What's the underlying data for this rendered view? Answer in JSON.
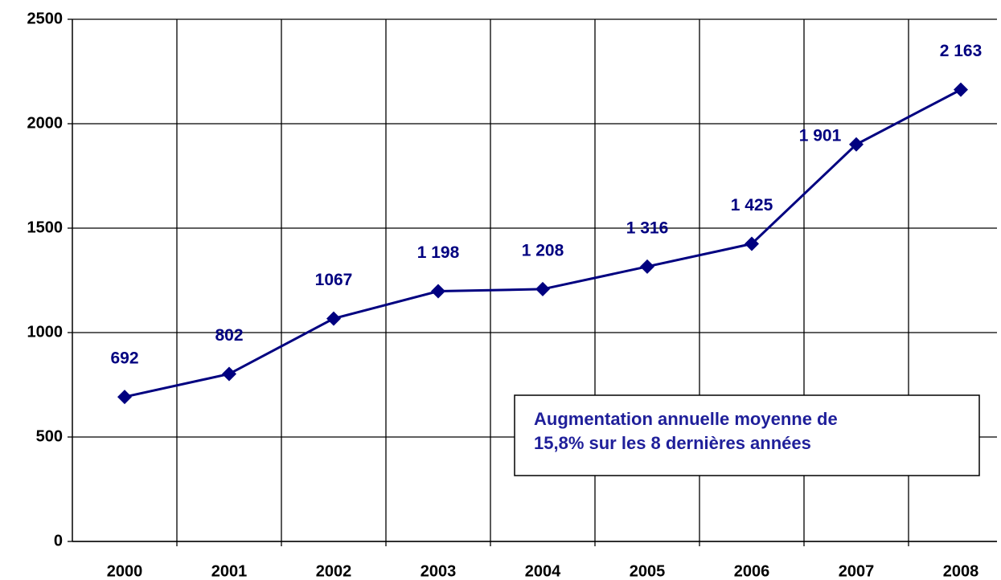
{
  "chart_data": {
    "type": "line",
    "categories": [
      "2000",
      "2001",
      "2002",
      "2003",
      "2004",
      "2005",
      "2006",
      "2007",
      "2008"
    ],
    "values": [
      692,
      802,
      1067,
      1198,
      1208,
      1316,
      1425,
      1901,
      2163
    ],
    "value_labels": [
      "692",
      "802",
      "1067",
      "1 198",
      "1 208",
      "1 316",
      "1 425",
      "1 901",
      "2 163"
    ],
    "color": "#000080",
    "ylim": [
      0,
      2500
    ],
    "yticks": [
      0,
      500,
      1000,
      1500,
      2000,
      2500
    ],
    "grid": true,
    "annotation": [
      "Augmentation annuelle moyenne de",
      "15,8% sur les 8 dernières années"
    ]
  }
}
